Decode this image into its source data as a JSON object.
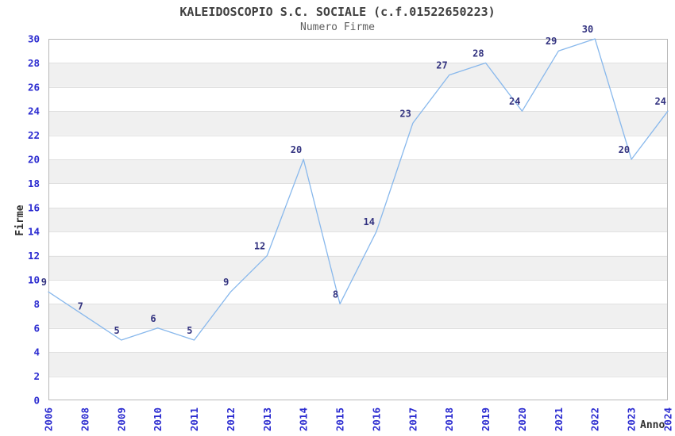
{
  "chart_data": {
    "type": "line",
    "title": "KALEIDOSCOPIO S.C. SOCIALE (c.f.01522650223)",
    "subtitle": "Numero Firme",
    "xlabel": "Anno",
    "ylabel": "Firme",
    "categories": [
      "2006",
      "2008",
      "2009",
      "2010",
      "2011",
      "2012",
      "2013",
      "2014",
      "2015",
      "2016",
      "2017",
      "2018",
      "2019",
      "2020",
      "2021",
      "2022",
      "2023",
      "2024"
    ],
    "series": [
      {
        "name": "Numero Firme",
        "values": [
          9,
          7,
          5,
          6,
          5,
          9,
          12,
          20,
          8,
          14,
          23,
          27,
          28,
          24,
          29,
          30,
          20,
          24
        ]
      }
    ],
    "data_labels_visible": true,
    "ylim": [
      0,
      30
    ],
    "ytick_step": 2,
    "yticks": [
      0,
      2,
      4,
      6,
      8,
      10,
      12,
      14,
      16,
      18,
      20,
      22,
      24,
      26,
      28,
      30
    ],
    "xtick_rotation": -90,
    "legend": "none",
    "grid": "alternating-horizontal-bands",
    "colors": {
      "line": "#88b8ec",
      "data_label": "#333380",
      "tick_label": "#2b2bd0",
      "band_gray": "#f0f0f0",
      "band_white": "#ffffff",
      "grid_line": "#e0e0e0",
      "plot_border": "#b8b8b8",
      "title": "#404040",
      "subtitle": "#5f5f5f",
      "axis_label": "#303030",
      "background": "#ffffff"
    }
  }
}
